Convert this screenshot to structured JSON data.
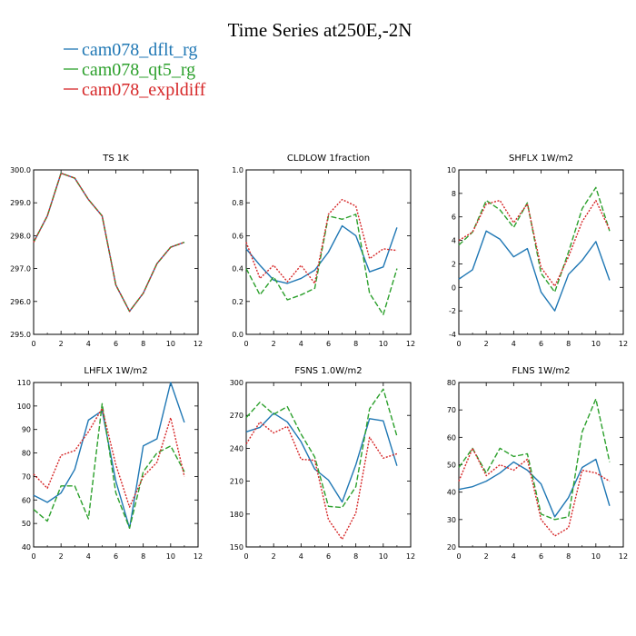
{
  "figure": {
    "title": "Time Series at250E,-2N",
    "legend": [
      {
        "name": "cam078_dflt_rg",
        "color": "#1f77b4",
        "dash": "solid"
      },
      {
        "name": "cam078_qt5_rg",
        "color": "#2ca02c",
        "dash": "dashed"
      },
      {
        "name": "cam078_expldiff",
        "color": "#d62728",
        "dash": "dotted"
      }
    ]
  },
  "chart_data": [
    {
      "type": "line",
      "title": "TS   1K",
      "x": [
        0,
        1,
        2,
        3,
        4,
        5,
        6,
        7,
        8,
        9,
        10,
        11
      ],
      "xlim": [
        0,
        12
      ],
      "xticks": [
        "0",
        "2",
        "4",
        "6",
        "8",
        "10",
        "12"
      ],
      "ylim": [
        295,
        300
      ],
      "yticks": [
        "295.0",
        "296.0",
        "297.0",
        "298.0",
        "299.0",
        "300.0"
      ],
      "series": [
        {
          "name": "cam078_dflt_rg",
          "values": [
            297.8,
            298.6,
            299.9,
            299.75,
            299.1,
            298.6,
            296.5,
            295.7,
            296.25,
            297.15,
            297.65,
            297.8
          ]
        },
        {
          "name": "cam078_qt5_rg",
          "values": [
            297.8,
            298.6,
            299.9,
            299.75,
            299.1,
            298.6,
            296.5,
            295.7,
            296.25,
            297.15,
            297.65,
            297.8
          ]
        },
        {
          "name": "cam078_expldiff",
          "values": [
            297.8,
            298.6,
            299.9,
            299.75,
            299.1,
            298.6,
            296.5,
            295.7,
            296.25,
            297.15,
            297.65,
            297.8
          ]
        }
      ]
    },
    {
      "type": "line",
      "title": "CLDLOW   1fraction",
      "x": [
        0,
        1,
        2,
        3,
        4,
        5,
        6,
        7,
        8,
        9,
        10,
        11
      ],
      "xlim": [
        0,
        12
      ],
      "xticks": [
        "0",
        "2",
        "4",
        "6",
        "8",
        "10",
        "12"
      ],
      "ylim": [
        0,
        1
      ],
      "yticks": [
        "0.0",
        "0.2",
        "0.4",
        "0.6",
        "0.8",
        "1.0"
      ],
      "series": [
        {
          "name": "cam078_dflt_rg",
          "values": [
            0.52,
            0.42,
            0.33,
            0.31,
            0.34,
            0.39,
            0.5,
            0.66,
            0.6,
            0.38,
            0.41,
            0.65
          ]
        },
        {
          "name": "cam078_qt5_rg",
          "values": [
            0.4,
            0.24,
            0.35,
            0.21,
            0.24,
            0.28,
            0.72,
            0.7,
            0.73,
            0.25,
            0.12,
            0.4
          ]
        },
        {
          "name": "cam078_expldiff",
          "values": [
            0.56,
            0.34,
            0.42,
            0.32,
            0.42,
            0.31,
            0.73,
            0.82,
            0.78,
            0.46,
            0.52,
            0.51
          ]
        }
      ]
    },
    {
      "type": "line",
      "title": "SHFLX   1W/m2",
      "x": [
        0,
        1,
        2,
        3,
        4,
        5,
        6,
        7,
        8,
        9,
        10,
        11
      ],
      "xlim": [
        0,
        12
      ],
      "xticks": [
        "0",
        "2",
        "4",
        "6",
        "8",
        "10",
        "12"
      ],
      "ylim": [
        -4,
        10
      ],
      "yticks": [
        "-4",
        "-2",
        "0",
        "2",
        "4",
        "6",
        "8",
        "10"
      ],
      "series": [
        {
          "name": "cam078_dflt_rg",
          "values": [
            0.7,
            1.5,
            4.8,
            4.1,
            2.6,
            3.3,
            -0.4,
            -2.0,
            1.1,
            2.3,
            3.9,
            0.6
          ]
        },
        {
          "name": "cam078_qt5_rg",
          "values": [
            3.6,
            4.7,
            7.4,
            6.6,
            5.1,
            7.2,
            1.2,
            -0.4,
            3.0,
            6.7,
            8.5,
            4.8
          ]
        },
        {
          "name": "cam078_expldiff",
          "values": [
            4.0,
            4.7,
            7.1,
            7.4,
            5.5,
            7.1,
            1.7,
            0.1,
            2.6,
            5.6,
            7.4,
            4.9
          ]
        }
      ]
    },
    {
      "type": "line",
      "title": "LHFLX   1W/m2",
      "x": [
        0,
        1,
        2,
        3,
        4,
        5,
        6,
        7,
        8,
        9,
        10,
        11
      ],
      "xlim": [
        0,
        12
      ],
      "xticks": [
        "0",
        "2",
        "4",
        "6",
        "8",
        "10",
        "12"
      ],
      "ylim": [
        40,
        110
      ],
      "yticks": [
        "40",
        "50",
        "60",
        "70",
        "80",
        "90",
        "100",
        "110"
      ],
      "series": [
        {
          "name": "cam078_dflt_rg",
          "values": [
            62,
            59,
            63,
            73,
            94,
            98,
            68,
            48,
            83,
            86,
            110,
            93
          ]
        },
        {
          "name": "cam078_qt5_rg",
          "values": [
            56,
            51,
            66,
            66,
            52,
            101,
            63,
            48,
            72,
            80,
            83,
            72
          ]
        },
        {
          "name": "cam078_expldiff",
          "values": [
            71,
            65,
            79,
            81,
            89,
            99,
            75,
            57,
            70,
            76,
            95,
            70
          ]
        }
      ]
    },
    {
      "type": "line",
      "title": "FSNS   1.0W/m2",
      "x": [
        0,
        1,
        2,
        3,
        4,
        5,
        6,
        7,
        8,
        9,
        10,
        11
      ],
      "xlim": [
        0,
        12
      ],
      "xticks": [
        "0",
        "2",
        "4",
        "6",
        "8",
        "10",
        "12"
      ],
      "ylim": [
        150,
        300
      ],
      "yticks": [
        "150",
        "180",
        "210",
        "240",
        "270",
        "300"
      ],
      "series": [
        {
          "name": "cam078_dflt_rg",
          "values": [
            255,
            259,
            272,
            264,
            246,
            221,
            211,
            191,
            225,
            267,
            265,
            224
          ]
        },
        {
          "name": "cam078_qt5_rg",
          "values": [
            268,
            282,
            271,
            278,
            253,
            232,
            187,
            186,
            205,
            276,
            294,
            251
          ]
        },
        {
          "name": "cam078_expldiff",
          "values": [
            244,
            264,
            254,
            260,
            230,
            229,
            175,
            157,
            181,
            250,
            231,
            235
          ]
        }
      ]
    },
    {
      "type": "line",
      "title": "FLNS   1W/m2",
      "x": [
        0,
        1,
        2,
        3,
        4,
        5,
        6,
        7,
        8,
        9,
        10,
        11
      ],
      "xlim": [
        0,
        12
      ],
      "xticks": [
        "0",
        "2",
        "4",
        "6",
        "8",
        "10",
        "12"
      ],
      "ylim": [
        20,
        80
      ],
      "yticks": [
        "20",
        "30",
        "40",
        "50",
        "60",
        "70",
        "80"
      ],
      "series": [
        {
          "name": "cam078_dflt_rg",
          "values": [
            41,
            42,
            44,
            47,
            51,
            48,
            43,
            31,
            38,
            49,
            52,
            35
          ]
        },
        {
          "name": "cam078_qt5_rg",
          "values": [
            49,
            56,
            47,
            56,
            53,
            54,
            32,
            30,
            31,
            62,
            74,
            51
          ]
        },
        {
          "name": "cam078_expldiff",
          "values": [
            44,
            56,
            46,
            50,
            48,
            52,
            30,
            24,
            27,
            48,
            47,
            44
          ]
        }
      ]
    }
  ]
}
